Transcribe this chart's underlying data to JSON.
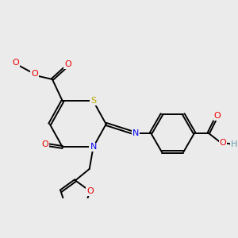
{
  "background_color": "#ebebeb",
  "atom_colors": {
    "C": "#000000",
    "H": "#6a9aaa",
    "N": "#0000ee",
    "O": "#ee0000",
    "S": "#bbaa00"
  },
  "lw": 1.4
}
